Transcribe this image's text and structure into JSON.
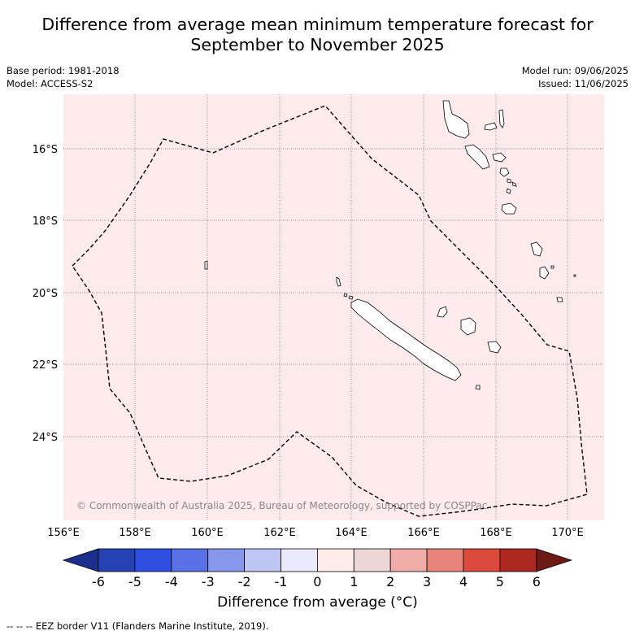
{
  "title_line1": "Difference from average mean minimum temperature forecast for",
  "title_line2": "September to November 2025",
  "base_period": "Base period: 1981-2018",
  "model": "Model: ACCESS-S2",
  "model_run": "Model run: 09/06/2025",
  "issued": "Issued: 11/06/2025",
  "copyright": "© Commonwealth of Australia 2025, Bureau of Meteorology, supported by COSPPac",
  "lat_labels": [
    "16°S",
    "18°S",
    "20°S",
    "22°S",
    "24°S"
  ],
  "lon_labels": [
    "156°E",
    "158°E",
    "160°E",
    "162°E",
    "164°E",
    "166°E",
    "168°E",
    "170°E"
  ],
  "colorbar": {
    "ticks": [
      "-6",
      "-5",
      "-4",
      "-3",
      "-2",
      "-1",
      "0",
      "1",
      "2",
      "3",
      "4",
      "5",
      "6"
    ],
    "colors": [
      "#1c2f8f",
      "#2641b4",
      "#2f4fe0",
      "#5a70e6",
      "#8797ec",
      "#c0c6f4",
      "#e9ebfb",
      "#fdecea",
      "#ecd7d6",
      "#f0aca7",
      "#e8847c",
      "#dc4a3c",
      "#ae2822",
      "#6f1b15"
    ],
    "label": "Difference from average (°C)"
  },
  "map_fill": "#fcebea",
  "footnote": "--  --  -- EEZ border V11 (Flanders Marine Institute, 2019)."
}
